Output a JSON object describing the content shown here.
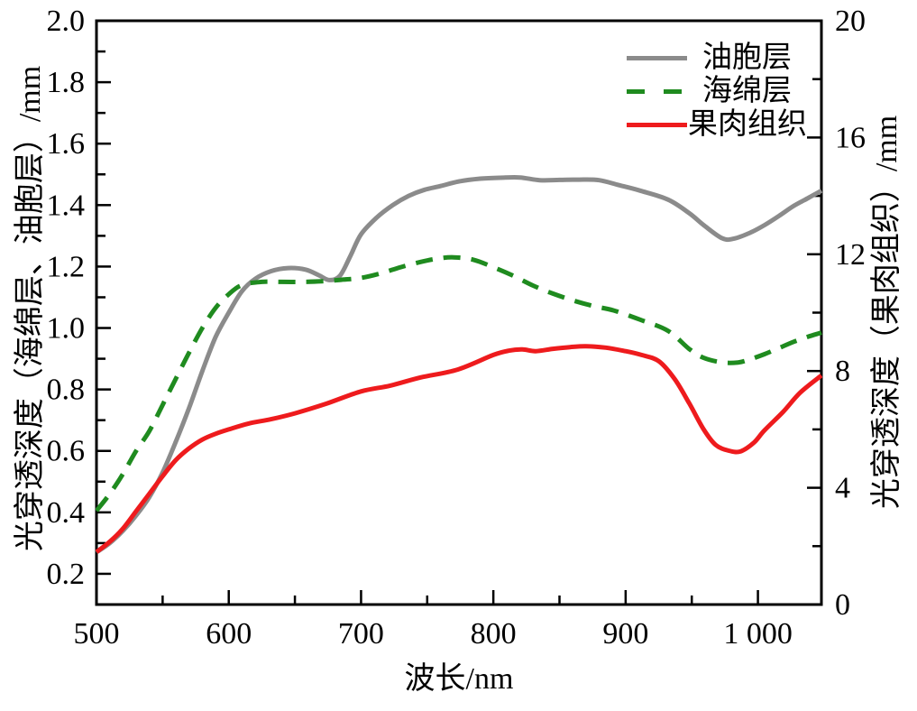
{
  "chart_data": {
    "type": "line",
    "title": "",
    "xlabel": "波长/nm",
    "ylabel_left": "光穿透深度（海绵层、油胞层）/mm",
    "ylabel_right": "光穿透深度（果肉组织）/mm",
    "background": "#ffffff",
    "axis_color": "#000000",
    "grid": false,
    "legend_position": "top-right-inside",
    "x_range": [
      500,
      1048
    ],
    "x_major_ticks": [
      500,
      600,
      700,
      800,
      900,
      1000
    ],
    "x_tick_labels": [
      "500",
      "600",
      "700",
      "800",
      "900",
      "1 000"
    ],
    "x_minor_ticks": [
      550,
      650,
      750,
      850,
      950
    ],
    "y_left_range": [
      0.1,
      2.0
    ],
    "y_left_major_ticks": [
      0.2,
      0.4,
      0.6,
      0.8,
      1.0,
      1.2,
      1.4,
      1.6,
      1.8,
      2.0
    ],
    "y_left_tick_labels": [
      "0.2",
      "0.4",
      "0.6",
      "0.8",
      "1.0",
      "1.2",
      "1.4",
      "1.6",
      "1.8",
      "2.0"
    ],
    "y_left_minor_ticks": [
      0.3,
      0.5,
      0.7,
      0.9,
      1.1,
      1.3,
      1.5,
      1.7,
      1.9
    ],
    "y_right_range": [
      0,
      20
    ],
    "y_right_major_ticks": [
      0,
      4,
      8,
      12,
      16,
      20
    ],
    "y_right_tick_labels": [
      "0",
      "4",
      "8",
      "12",
      "16",
      "20"
    ],
    "y_right_minor_ticks": [
      2,
      6,
      10,
      14,
      18
    ],
    "series": [
      {
        "name": "油胞层",
        "axis": "left",
        "color": "#8b8b8b",
        "line_style": "solid",
        "line_width": 5,
        "x": [
          500,
          510,
          520,
          530,
          540,
          550,
          560,
          570,
          580,
          590,
          600,
          610,
          620,
          632,
          645,
          658,
          668,
          676,
          684,
          692,
          700,
          712,
          724,
          736,
          748,
          760,
          775,
          790,
          805,
          820,
          835,
          850,
          865,
          880,
          895,
          911,
          932,
          948,
          959,
          973,
          982,
          994,
          1005,
          1016,
          1027,
          1038,
          1048
        ],
        "y": [
          0.27,
          0.3,
          0.34,
          0.39,
          0.45,
          0.53,
          0.63,
          0.74,
          0.86,
          0.97,
          1.05,
          1.12,
          1.16,
          1.185,
          1.195,
          1.19,
          1.172,
          1.156,
          1.17,
          1.235,
          1.305,
          1.36,
          1.4,
          1.43,
          1.45,
          1.462,
          1.478,
          1.486,
          1.489,
          1.49,
          1.481,
          1.482,
          1.483,
          1.481,
          1.465,
          1.447,
          1.418,
          1.374,
          1.335,
          1.292,
          1.291,
          1.31,
          1.335,
          1.365,
          1.397,
          1.423,
          1.447
        ]
      },
      {
        "name": "海绵层",
        "axis": "left",
        "color": "#1f8b1f",
        "line_style": "dashed",
        "line_width": 5,
        "x": [
          500,
          510,
          520,
          530,
          540,
          550,
          560,
          570,
          580,
          590,
          600,
          610,
          625,
          640,
          655,
          670,
          685,
          700,
          715,
          730,
          745,
          758,
          770,
          785,
          800,
          815,
          830,
          845,
          860,
          875,
          891,
          911,
          932,
          948,
          959,
          973,
          985,
          994,
          1005,
          1016,
          1027,
          1038,
          1048
        ],
        "y": [
          0.405,
          0.46,
          0.525,
          0.6,
          0.665,
          0.75,
          0.835,
          0.92,
          1.0,
          1.065,
          1.11,
          1.14,
          1.15,
          1.15,
          1.15,
          1.152,
          1.157,
          1.163,
          1.178,
          1.198,
          1.215,
          1.226,
          1.23,
          1.222,
          1.198,
          1.17,
          1.138,
          1.112,
          1.09,
          1.072,
          1.057,
          1.027,
          0.991,
          0.932,
          0.903,
          0.888,
          0.888,
          0.898,
          0.915,
          0.935,
          0.955,
          0.972,
          0.985
        ]
      },
      {
        "name": "果肉组织",
        "axis": "right",
        "color": "#ee1b1d",
        "line_style": "solid",
        "line_width": 5,
        "x": [
          500,
          510,
          520,
          530,
          540,
          550,
          560,
          570,
          580,
          590,
          600,
          615,
          632,
          650,
          673,
          700,
          722,
          745,
          773,
          800,
          812,
          822,
          832,
          845,
          858,
          870,
          885,
          900,
          912,
          925,
          937,
          948,
          959,
          968,
          978,
          987,
          997,
          1005,
          1019,
          1032,
          1048
        ],
        "y": [
          1.8,
          2.15,
          2.6,
          3.2,
          3.8,
          4.4,
          4.95,
          5.35,
          5.65,
          5.85,
          6.0,
          6.2,
          6.35,
          6.55,
          6.87,
          7.3,
          7.5,
          7.78,
          8.05,
          8.55,
          8.7,
          8.74,
          8.68,
          8.76,
          8.82,
          8.85,
          8.8,
          8.68,
          8.55,
          8.34,
          7.73,
          6.9,
          6.0,
          5.47,
          5.27,
          5.25,
          5.55,
          5.97,
          6.6,
          7.26,
          7.85
        ]
      }
    ]
  }
}
